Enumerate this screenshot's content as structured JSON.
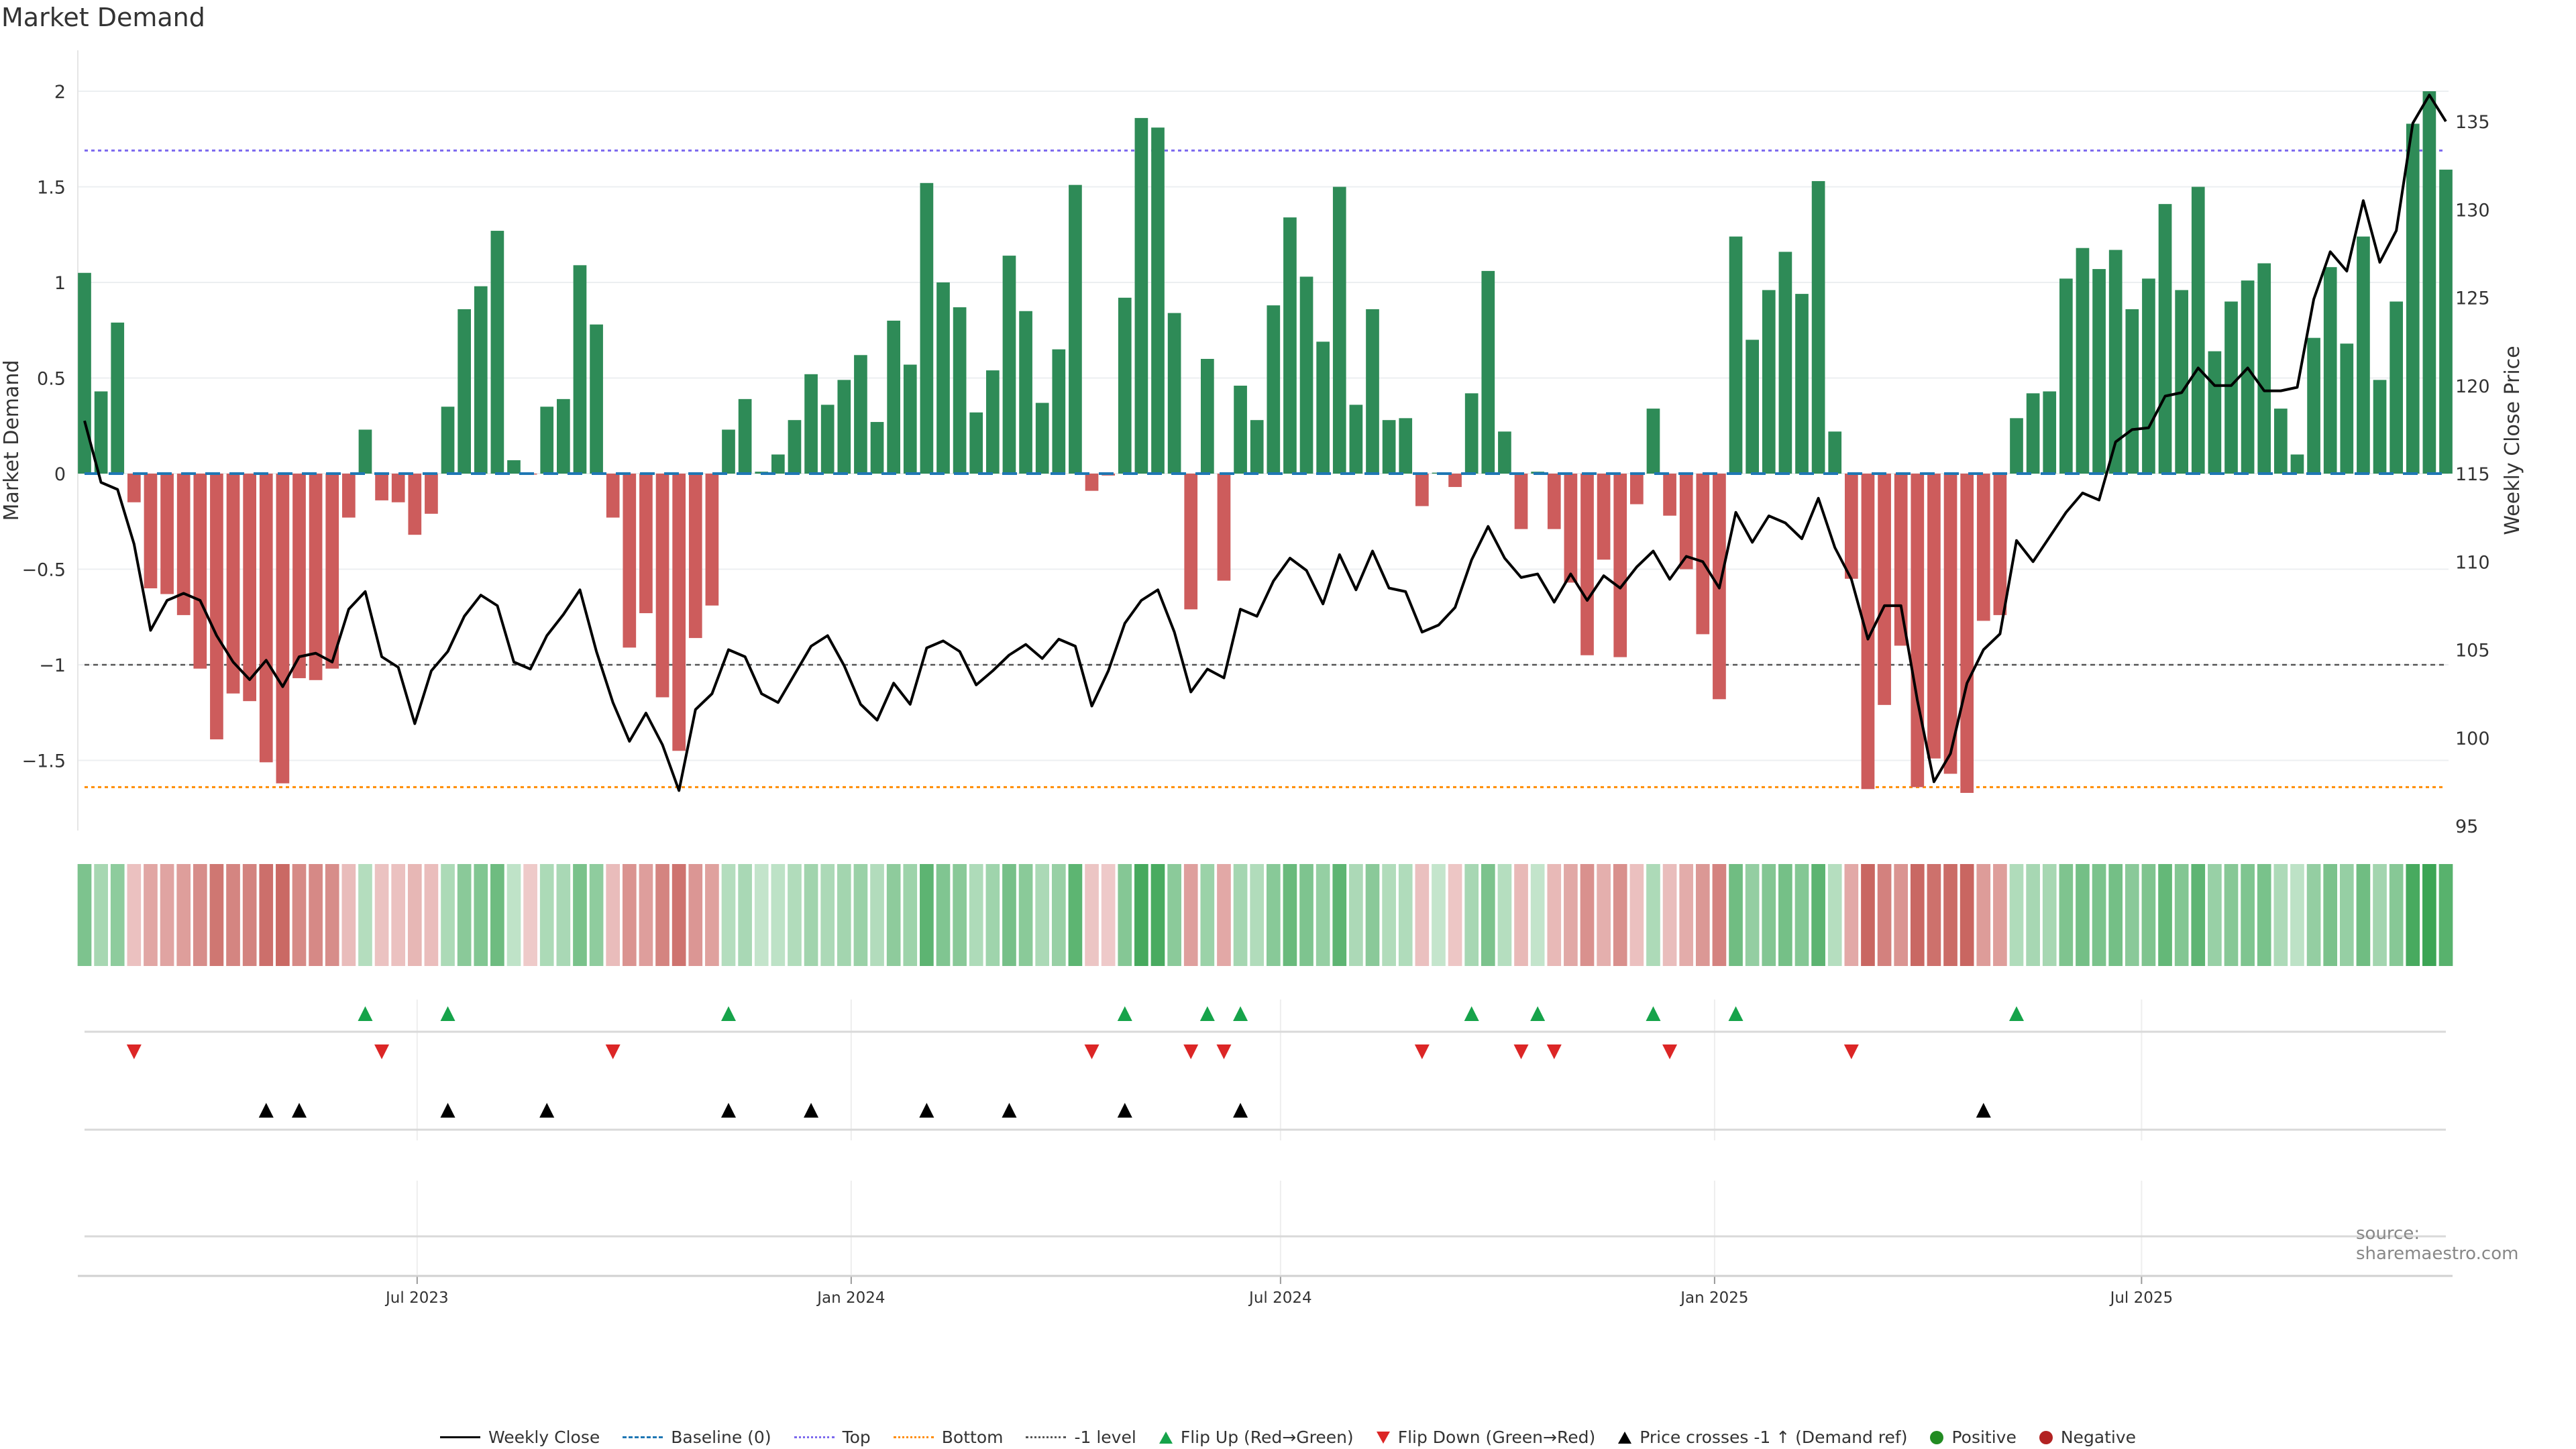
{
  "title": "Market Demand",
  "source": "source: sharemaestro.com",
  "legend": [
    {
      "label": "Weekly Close",
      "kind": "line",
      "color": "#000000",
      "dash": "solid"
    },
    {
      "label": "Baseline (0)",
      "kind": "line",
      "color": "#1f77b4",
      "dash": "dashed"
    },
    {
      "label": "Top",
      "kind": "line",
      "color": "#7b68ee",
      "dash": "dotted"
    },
    {
      "label": "Bottom",
      "kind": "line",
      "color": "#ff8c00",
      "dash": "dotted"
    },
    {
      "label": "-1 level",
      "kind": "line",
      "color": "#555555",
      "dash": "dotted"
    },
    {
      "label": "Flip Up (Red→Green)",
      "kind": "tri-up",
      "color": "#16a34a"
    },
    {
      "label": "Flip Down (Green→Red)",
      "kind": "tri-down",
      "color": "#dc2626"
    },
    {
      "label": "Price crosses -1 ↑ (Demand ref)",
      "kind": "tri-up",
      "color": "#000000"
    },
    {
      "label": "Positive",
      "kind": "dot",
      "color": "#228b22"
    },
    {
      "label": "Negative",
      "kind": "dot",
      "color": "#b22222"
    }
  ],
  "colors": {
    "positive_bar": "#2e8b57",
    "negative_bar": "#cd5c5c",
    "price_line": "#000000",
    "baseline": "#1f77b4",
    "top": "#7b68ee",
    "bottom": "#ff8c00",
    "minus1": "#555555"
  },
  "chart_data": {
    "type": "bar",
    "title": "Market Demand",
    "xlabel": "",
    "ylabel": "Market Demand",
    "y2label": "Weekly Close Price",
    "start_week": "2023-02-10",
    "frequency": "weekly",
    "ylim": [
      -1.9,
      2.2
    ],
    "y2lim": [
      94,
      138
    ],
    "yticks": [
      -1.5,
      -1,
      -0.5,
      0,
      0.5,
      1,
      1.5,
      2
    ],
    "ytick_labels": [
      "−1.5",
      "−1",
      "−0.5",
      "0",
      "0.5",
      "1",
      "1.5",
      "2"
    ],
    "y2ticks": [
      95,
      100,
      105,
      110,
      115,
      120,
      125,
      130,
      135
    ],
    "y2tick_labels": [
      "95",
      "100",
      "105",
      "110",
      "115",
      "120",
      "125",
      "130",
      "135"
    ],
    "xticks": [
      {
        "date": "2023-07-01",
        "label": "Jul 2023"
      },
      {
        "date": "2024-01-01",
        "label": "Jan 2024"
      },
      {
        "date": "2024-07-01",
        "label": "Jul 2024"
      },
      {
        "date": "2025-01-01",
        "label": "Jan 2025"
      },
      {
        "date": "2025-07-01",
        "label": "Jul 2025"
      }
    ],
    "levels": {
      "top": 1.69,
      "bottom": -1.64,
      "minus1": -1,
      "baseline": 0
    },
    "grid": true,
    "legend_position": "bottom",
    "series": [
      {
        "name": "Market Demand",
        "type": "bar",
        "values": [
          1.05,
          0.43,
          0.79,
          -0.15,
          -0.6,
          -0.63,
          -0.74,
          -1.02,
          -1.39,
          -1.15,
          -1.19,
          -1.51,
          -1.62,
          -1.07,
          -1.08,
          -1.02,
          -0.23,
          0.23,
          -0.14,
          -0.15,
          -0.32,
          -0.21,
          0.35,
          0.86,
          0.98,
          1.27,
          0.07,
          -0.005,
          0.35,
          0.39,
          1.09,
          0.78,
          -0.23,
          -0.91,
          -0.73,
          -1.17,
          -1.45,
          -0.86,
          -0.69,
          0.23,
          0.39,
          0.01,
          0.1,
          0.28,
          0.52,
          0.36,
          0.49,
          0.62,
          0.27,
          0.8,
          0.57,
          1.52,
          1.0,
          0.87,
          0.32,
          0.54,
          1.14,
          0.85,
          0.37,
          0.65,
          1.51,
          -0.09,
          -0.01,
          0.92,
          1.86,
          1.81,
          0.84,
          -0.71,
          0.6,
          -0.56,
          0.46,
          0.28,
          0.88,
          1.34,
          1.03,
          0.69,
          1.5,
          0.36,
          0.86,
          0.28,
          0.29,
          -0.17,
          0.005,
          -0.07,
          0.42,
          1.06,
          0.22,
          -0.29,
          0.01,
          -0.29,
          -0.57,
          -0.95,
          -0.45,
          -0.96,
          -0.16,
          0.34,
          -0.22,
          -0.5,
          -0.84,
          -1.18,
          1.24,
          0.7,
          0.96,
          1.16,
          0.94,
          1.53,
          0.22,
          -0.55,
          -1.65,
          -1.21,
          -0.9,
          -1.64,
          -1.49,
          -1.57,
          -1.67,
          -0.77,
          -0.74,
          0.29,
          0.42,
          0.43,
          1.02,
          1.18,
          1.07,
          1.17,
          0.86,
          1.02,
          1.41,
          0.96,
          1.5,
          0.64,
          0.9,
          1.01,
          1.1,
          0.34,
          0.1,
          0.71,
          1.08,
          0.68,
          1.24,
          0.49,
          0.9,
          1.83,
          2.0,
          1.59
        ]
      },
      {
        "name": "Weekly Close",
        "type": "line",
        "axis": "right",
        "values": [
          118.0,
          114.5,
          114.1,
          111.0,
          106.1,
          107.8,
          108.2,
          107.8,
          105.8,
          104.3,
          103.3,
          104.4,
          102.9,
          104.6,
          104.8,
          104.3,
          107.3,
          108.3,
          104.6,
          104.0,
          100.8,
          103.8,
          104.9,
          106.9,
          108.1,
          107.5,
          104.3,
          103.9,
          105.8,
          107.0,
          108.4,
          104.9,
          102.0,
          99.8,
          101.4,
          99.6,
          97.0,
          101.6,
          102.5,
          105.0,
          104.6,
          102.5,
          102.0,
          103.6,
          105.2,
          105.8,
          104.1,
          101.9,
          101.0,
          103.1,
          101.9,
          105.1,
          105.5,
          104.9,
          103.0,
          103.8,
          104.7,
          105.3,
          104.5,
          105.6,
          105.2,
          101.8,
          103.8,
          106.5,
          107.8,
          108.4,
          106.0,
          102.6,
          103.9,
          103.4,
          107.3,
          106.9,
          108.9,
          110.2,
          109.5,
          107.6,
          110.4,
          108.4,
          110.6,
          108.5,
          108.3,
          106.0,
          106.4,
          107.4,
          110.1,
          112.0,
          110.2,
          109.1,
          109.3,
          107.7,
          109.3,
          107.8,
          109.2,
          108.5,
          109.7,
          110.6,
          109.0,
          110.3,
          110.0,
          108.5,
          112.8,
          111.1,
          112.6,
          112.2,
          111.3,
          113.6,
          110.8,
          109.0,
          105.6,
          107.5,
          107.5,
          102.1,
          97.5,
          99.1,
          103.1,
          105.0,
          105.9,
          111.2,
          110.0,
          111.4,
          112.8,
          113.9,
          113.5,
          116.8,
          117.5,
          117.6,
          119.4,
          119.6,
          121.0,
          120.0,
          120.0,
          121.0,
          119.7,
          119.7,
          119.9,
          124.9,
          127.6,
          126.5,
          130.5,
          127.0,
          128.8,
          134.9,
          136.5,
          135.0
        ]
      }
    ],
    "markers": {
      "flip_up_week_index": [
        17,
        22,
        39,
        63,
        68,
        70,
        84,
        88,
        95,
        100,
        117
      ],
      "flip_down_week_index": [
        3,
        18,
        32,
        61,
        67,
        69,
        81,
        87,
        89,
        96,
        107
      ],
      "price_cross_week_index": [
        11,
        13,
        22,
        28,
        39,
        44,
        51,
        56,
        63,
        70,
        115
      ]
    }
  }
}
